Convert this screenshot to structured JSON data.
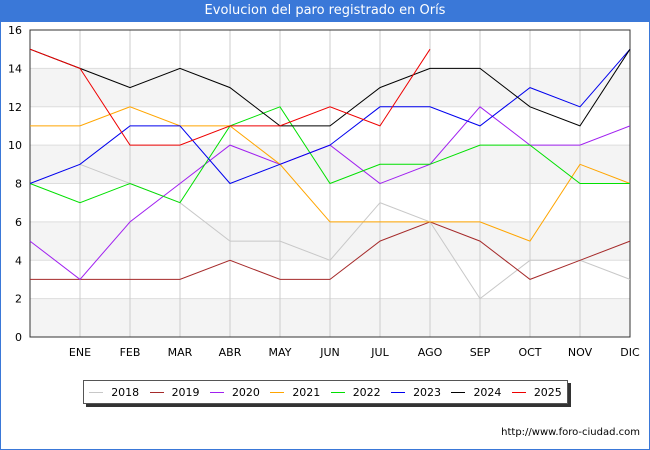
{
  "title": "Evolucion del paro registrado en Orís",
  "footer": "http://www.foro-ciudad.com",
  "chart_data": {
    "type": "line",
    "title": "Evolucion del paro registrado en Orís",
    "xlabel": "",
    "ylabel": "",
    "ylim": [
      0,
      16
    ],
    "yticks": [
      0,
      2,
      4,
      6,
      8,
      10,
      12,
      14,
      16
    ],
    "categories": [
      "",
      "ENE",
      "FEB",
      "MAR",
      "ABR",
      "MAY",
      "JUN",
      "JUL",
      "AGO",
      "SEP",
      "OCT",
      "NOV",
      "DIC"
    ],
    "grid": true,
    "legend_position": "bottom",
    "series": [
      {
        "name": "2018",
        "color": "#c8c8c8",
        "values": [
          null,
          9,
          8,
          7,
          5,
          5,
          4,
          7,
          6,
          2,
          4,
          4,
          3
        ]
      },
      {
        "name": "2019",
        "color": "#a52a2a",
        "values": [
          3,
          3,
          3,
          3,
          4,
          3,
          3,
          5,
          6,
          5,
          3,
          4,
          5
        ]
      },
      {
        "name": "2020",
        "color": "#a020f0",
        "values": [
          5,
          3,
          6,
          8,
          10,
          9,
          10,
          8,
          9,
          12,
          10,
          10,
          11
        ]
      },
      {
        "name": "2021",
        "color": "#ffa500",
        "values": [
          11,
          11,
          12,
          11,
          11,
          9,
          6,
          6,
          6,
          6,
          5,
          9,
          8
        ]
      },
      {
        "name": "2022",
        "color": "#00e000",
        "values": [
          8,
          7,
          8,
          7,
          11,
          12,
          8,
          9,
          9,
          10,
          10,
          8,
          8
        ]
      },
      {
        "name": "2023",
        "color": "#0000ee",
        "values": [
          8,
          9,
          11,
          11,
          8,
          9,
          10,
          12,
          12,
          11,
          13,
          12,
          15
        ]
      },
      {
        "name": "2024",
        "color": "#000000",
        "values": [
          15,
          14,
          13,
          14,
          13,
          11,
          11,
          13,
          14,
          14,
          12,
          11,
          15
        ]
      },
      {
        "name": "2025",
        "color": "#ee0000",
        "values": [
          15,
          14,
          10,
          10,
          11,
          11,
          12,
          11,
          15,
          null,
          null,
          null,
          null
        ]
      }
    ]
  }
}
